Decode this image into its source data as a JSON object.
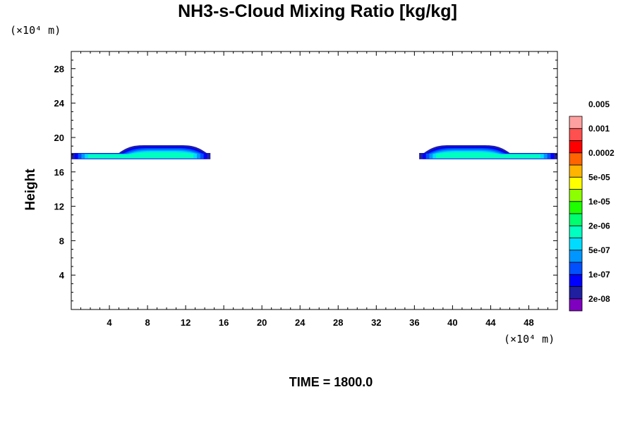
{
  "title": "NH3-s-Cloud Mixing Ratio [kg/kg]",
  "y_unit_label": "(×10⁴ m)",
  "x_unit_label": "(×10⁴ m)",
  "footer_time": "TIME = 1800.0",
  "chart_data": {
    "type": "heatmap",
    "title": "NH3-s-Cloud Mixing Ratio [kg/kg]",
    "xlabel": "",
    "ylabel": "Height",
    "xlim": [
      0,
      51
    ],
    "ylim": [
      0,
      30
    ],
    "x_ticks": [
      4,
      8,
      12,
      16,
      20,
      24,
      28,
      32,
      36,
      40,
      44,
      48
    ],
    "y_ticks": [
      4,
      8,
      12,
      16,
      20,
      24,
      28
    ],
    "grid": false,
    "colorbar": {
      "placement": "right",
      "colors": [
        "#7f00bf",
        "#1f1f9f",
        "#0000ff",
        "#0050ff",
        "#0096ff",
        "#00dcff",
        "#00ffc0",
        "#00ff6e",
        "#1eff00",
        "#8cff00",
        "#ffff00",
        "#ffb400",
        "#ff6400",
        "#ff0000",
        "#ff5050",
        "#ffa0a0"
      ],
      "labels": [
        "2e-08",
        "1e-07",
        "5e-07",
        "2e-06",
        "1e-05",
        "5e-05",
        "0.0002",
        "0.001",
        "0.005"
      ]
    },
    "cloud_regions": [
      {
        "x_start": 0,
        "x_end": 14.6,
        "x_core_start": 5,
        "x_core_end": 14.2,
        "y_base": 17.8,
        "y_top": 19.1
      },
      {
        "x_start": 36.5,
        "x_end": 51,
        "x_core_start": 37,
        "x_core_end": 46,
        "y_base": 17.8,
        "y_top": 19.1
      }
    ]
  }
}
